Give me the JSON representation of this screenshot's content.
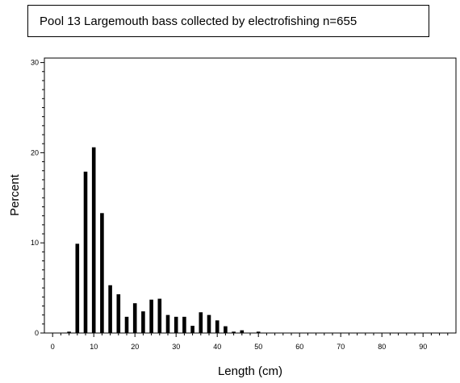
{
  "chart_data": {
    "type": "bar",
    "title": "Pool 13 Largemouth bass collected by electrofishing n=655",
    "xlabel": "Length (cm)",
    "ylabel": "Percent",
    "xlim": [
      -2,
      98
    ],
    "ylim": [
      0,
      30.5
    ],
    "x_ticks": [
      0,
      10,
      20,
      30,
      40,
      50,
      60,
      70,
      80,
      90
    ],
    "y_ticks": [
      0,
      10,
      20,
      30
    ],
    "bar_width": 0.9,
    "x": [
      4,
      6,
      8,
      10,
      12,
      14,
      16,
      18,
      20,
      22,
      24,
      26,
      28,
      30,
      32,
      34,
      36,
      38,
      40,
      42,
      44,
      46,
      50
    ],
    "values": [
      0.15,
      9.9,
      17.9,
      20.6,
      13.3,
      5.3,
      4.3,
      1.8,
      3.3,
      2.4,
      3.7,
      3.8,
      2.0,
      1.8,
      1.8,
      0.8,
      2.3,
      2.0,
      1.4,
      0.75,
      0.15,
      0.3,
      0.15
    ]
  }
}
